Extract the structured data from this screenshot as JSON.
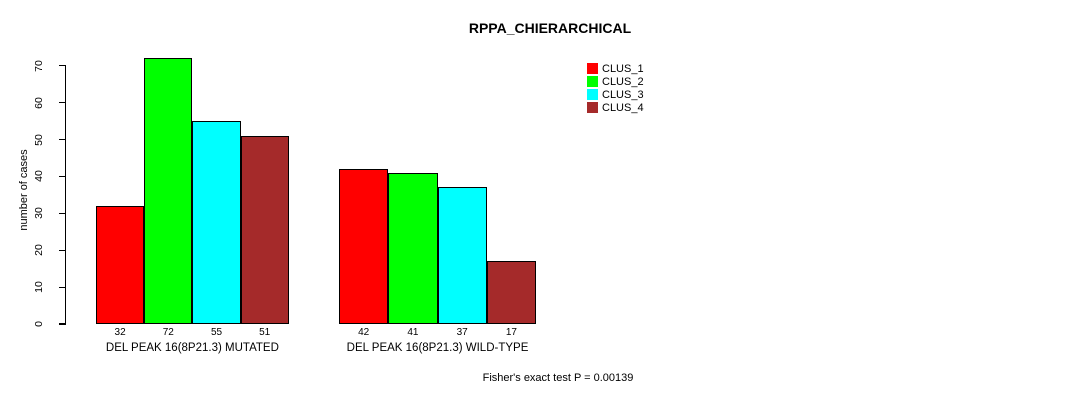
{
  "chart_data": {
    "type": "bar",
    "title": "RPPA_CHIERARCHICAL",
    "ylabel": "number of cases",
    "xlabel": "",
    "categories": [
      "DEL PEAK 16(8P21.3) MUTATED",
      "DEL PEAK 16(8P21.3) WILD-TYPE"
    ],
    "series": [
      {
        "name": "CLUS_1",
        "color": "#FF0000",
        "values": [
          32,
          42
        ]
      },
      {
        "name": "CLUS_2",
        "color": "#00FF00",
        "values": [
          72,
          41
        ]
      },
      {
        "name": "CLUS_3",
        "color": "#00FFFF",
        "values": [
          55,
          37
        ]
      },
      {
        "name": "CLUS_4",
        "color": "#A52A2A",
        "values": [
          51,
          17
        ]
      }
    ],
    "bar_value_labels": [
      [
        "32",
        "72",
        "55",
        "51"
      ],
      [
        "42",
        "41",
        "37",
        "17"
      ]
    ],
    "yticks": [
      0,
      10,
      20,
      30,
      40,
      50,
      60,
      70
    ],
    "ylim": [
      0,
      72
    ],
    "grid": false,
    "legend_position": "top-right",
    "annotation": "Fisher's exact test P = 0.00139"
  }
}
